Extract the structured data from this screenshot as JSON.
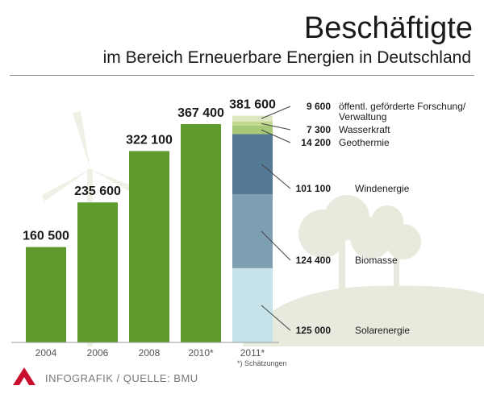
{
  "header": {
    "title": "Beschäftigte",
    "subtitle": "im Bereich Erneuerbare Energien in Deutschland"
  },
  "footer": {
    "source": "INFOGRAFIK / QUELLE: BMU",
    "footnote": "*) Schätzungen"
  },
  "colors": {
    "bar_green": "#5f9a2c",
    "solar": "#c6e3ea",
    "biomass": "#7e9eb1",
    "wind": "#557a95",
    "geothermal": "#a8c977",
    "hydro": "#c1d98f",
    "research": "#dde8c2",
    "logo_red": "#c8102e"
  },
  "chart_data": {
    "type": "bar",
    "categories": [
      "2004",
      "2006",
      "2008",
      "2010*",
      "2011*"
    ],
    "values": [
      160500,
      235600,
      322100,
      367400,
      381600
    ],
    "value_labels": [
      "160 500",
      "235 600",
      "322 100",
      "367 400",
      "381 600"
    ],
    "title": "Beschäftigte",
    "subtitle": "im Bereich Erneuerbare Energien in Deutschland",
    "stacked_category": "2011*",
    "breakdown": [
      {
        "name": "Solarenergie",
        "value": 125000,
        "label": "125 000"
      },
      {
        "name": "Biomasse",
        "value": 124400,
        "label": "124 400"
      },
      {
        "name": "Windenergie",
        "value": 101100,
        "label": "101 100"
      },
      {
        "name": "Geothermie",
        "value": 14200,
        "label": "14 200"
      },
      {
        "name": "Wasserkraft",
        "value": 7300,
        "label": "7 300"
      },
      {
        "name": "öffentl. geförderte Forschung/ Verwaltung",
        "name_line1": "öffentl. geförderte Forschung/",
        "name_line2": "Verwaltung",
        "value": 9600,
        "label": "9 600"
      }
    ],
    "ylim": [
      0,
      400000
    ],
    "grid": false,
    "legend": "right"
  }
}
